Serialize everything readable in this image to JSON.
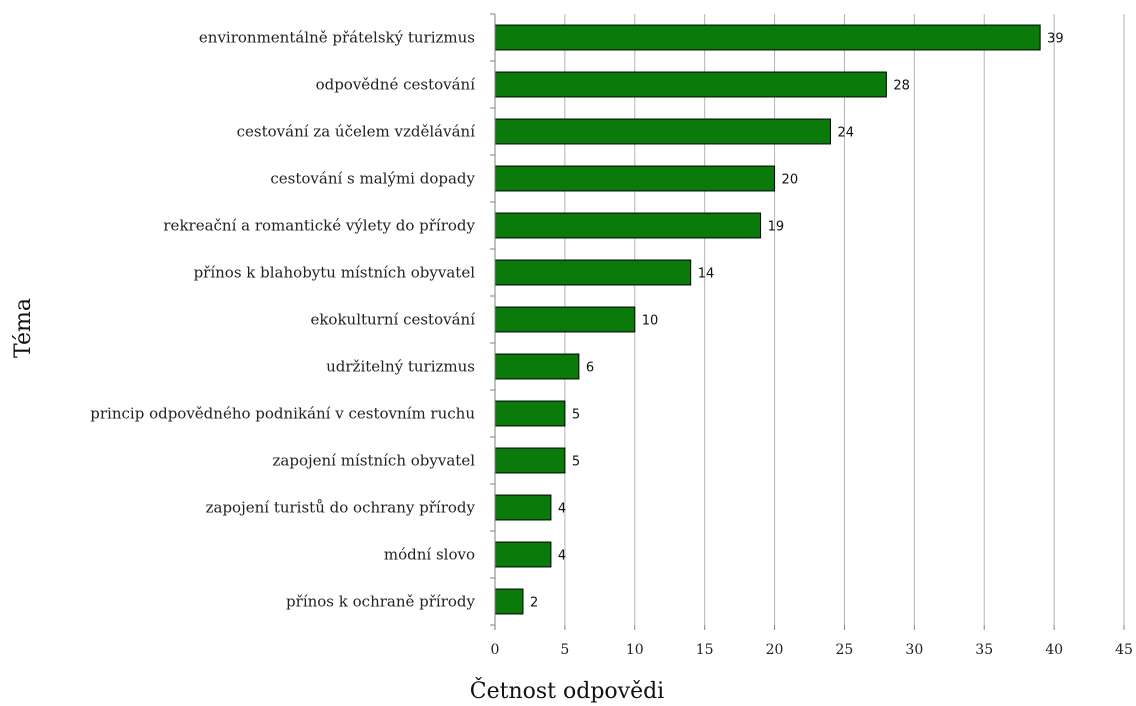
{
  "chart_data": {
    "type": "bar",
    "orientation": "horizontal",
    "categories": [
      "environmentálně přátelský turizmus",
      "odpovědné cestování",
      "cestování za účelem vzdělávání",
      "cestování s malými dopady",
      "rekreační a romantické výlety do přírody",
      "přínos k blahobytu místních obyvatel",
      "ekokulturní cestování",
      "udržitelný turizmus",
      "princip odpovědného podnikání v cestovním ruchu",
      "zapojení místních obyvatel",
      "zapojení turistů do ochrany přírody",
      "módní slovo",
      "přínos k ochraně přírody"
    ],
    "values": [
      39,
      28,
      24,
      20,
      19,
      14,
      10,
      6,
      5,
      5,
      4,
      4,
      2
    ],
    "xlabel": "Četnost odpovědi",
    "ylabel": "Téma",
    "xlim": [
      0,
      45
    ],
    "xticks": [
      "0",
      "5",
      "10",
      "15",
      "20",
      "25",
      "30",
      "35",
      "40",
      "45"
    ],
    "grid": "vertical",
    "legend": "none",
    "data_labels": true,
    "bar_color": "#0a7a0a",
    "bar_border_color": "#000000",
    "grid_color": "#b3b3b3"
  }
}
